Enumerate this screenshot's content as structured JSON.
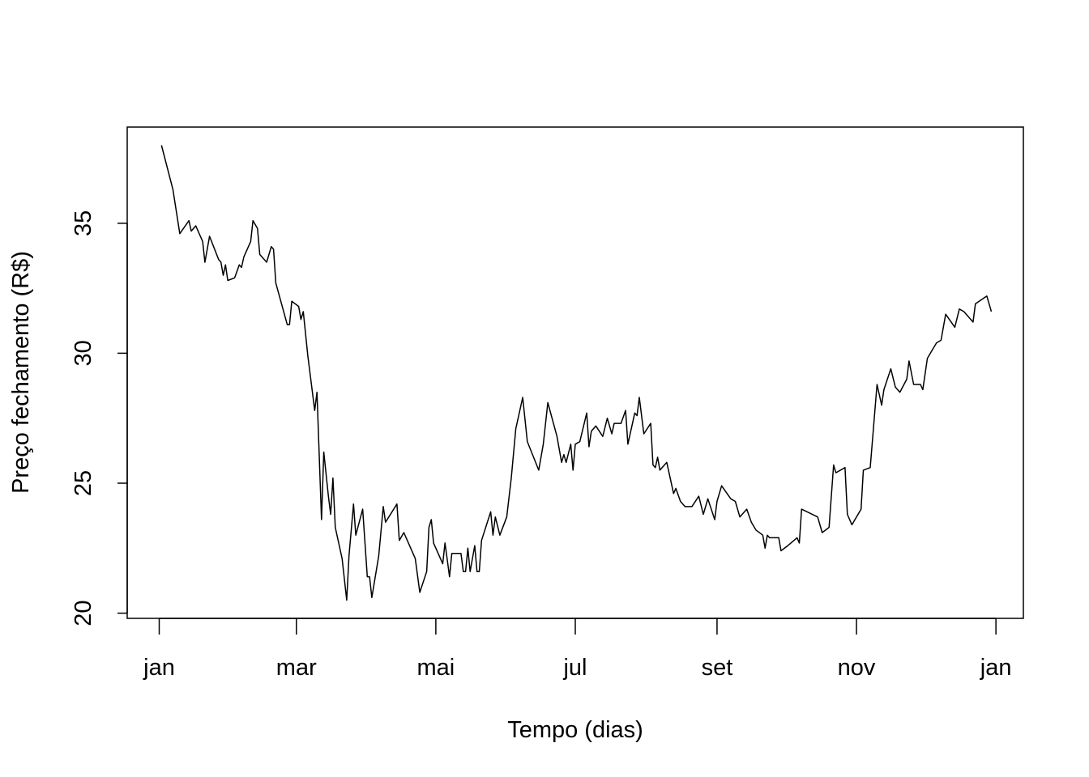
{
  "chart_data": {
    "type": "line",
    "title": "",
    "xlabel": "Tempo (dias)",
    "ylabel": "Preço fechamento (R$)",
    "ylim": [
      19.8,
      38.7
    ],
    "xlim": [
      "2019-12-18",
      "2021-01-13"
    ],
    "grid": false,
    "line_color": "#000000",
    "yticks": [
      20,
      25,
      30,
      35
    ],
    "xticks": [
      {
        "label": "jan",
        "date": "2020-01-01"
      },
      {
        "label": "mar",
        "date": "2020-03-01"
      },
      {
        "label": "mai",
        "date": "2020-05-01"
      },
      {
        "label": "jul",
        "date": "2020-07-01"
      },
      {
        "label": "set",
        "date": "2020-09-01"
      },
      {
        "label": "nov",
        "date": "2020-11-01"
      },
      {
        "label": "jan",
        "date": "2021-01-01"
      }
    ],
    "points": [
      [
        "2020-01-02",
        38.0
      ],
      [
        "2020-01-07",
        36.3
      ],
      [
        "2020-01-10",
        34.6
      ],
      [
        "2020-01-14",
        35.1
      ],
      [
        "2020-01-15",
        34.7
      ],
      [
        "2020-01-17",
        34.9
      ],
      [
        "2020-01-20",
        34.3
      ],
      [
        "2020-01-21",
        33.5
      ],
      [
        "2020-01-23",
        34.5
      ],
      [
        "2020-01-27",
        33.6
      ],
      [
        "2020-01-28",
        33.5
      ],
      [
        "2020-01-29",
        33.0
      ],
      [
        "2020-01-30",
        33.4
      ],
      [
        "2020-01-31",
        32.8
      ],
      [
        "2020-02-03",
        32.9
      ],
      [
        "2020-02-05",
        33.4
      ],
      [
        "2020-02-06",
        33.3
      ],
      [
        "2020-02-07",
        33.7
      ],
      [
        "2020-02-10",
        34.3
      ],
      [
        "2020-02-11",
        35.1
      ],
      [
        "2020-02-13",
        34.8
      ],
      [
        "2020-02-14",
        33.8
      ],
      [
        "2020-02-17",
        33.5
      ],
      [
        "2020-02-19",
        34.1
      ],
      [
        "2020-02-20",
        34.0
      ],
      [
        "2020-02-21",
        32.7
      ],
      [
        "2020-02-26",
        31.1
      ],
      [
        "2020-02-27",
        31.1
      ],
      [
        "2020-02-28",
        32.0
      ],
      [
        "2020-03-02",
        31.8
      ],
      [
        "2020-03-03",
        31.3
      ],
      [
        "2020-03-04",
        31.6
      ],
      [
        "2020-03-06",
        29.9
      ],
      [
        "2020-03-09",
        27.8
      ],
      [
        "2020-03-10",
        28.5
      ],
      [
        "2020-03-12",
        23.6
      ],
      [
        "2020-03-13",
        26.2
      ],
      [
        "2020-03-15",
        24.5
      ],
      [
        "2020-03-16",
        23.8
      ],
      [
        "2020-03-17",
        25.2
      ],
      [
        "2020-03-18",
        23.3
      ],
      [
        "2020-03-21",
        22.1
      ],
      [
        "2020-03-23",
        20.5
      ],
      [
        "2020-03-24",
        22.2
      ],
      [
        "2020-03-26",
        24.2
      ],
      [
        "2020-03-27",
        23.0
      ],
      [
        "2020-03-30",
        24.0
      ],
      [
        "2020-04-01",
        21.4
      ],
      [
        "2020-04-02",
        21.4
      ],
      [
        "2020-04-03",
        20.6
      ],
      [
        "2020-04-06",
        22.2
      ],
      [
        "2020-04-08",
        24.1
      ],
      [
        "2020-04-09",
        23.5
      ],
      [
        "2020-04-14",
        24.2
      ],
      [
        "2020-04-15",
        22.8
      ],
      [
        "2020-04-17",
        23.1
      ],
      [
        "2020-04-22",
        22.1
      ],
      [
        "2020-04-24",
        20.8
      ],
      [
        "2020-04-27",
        21.6
      ],
      [
        "2020-04-28",
        23.3
      ],
      [
        "2020-04-29",
        23.6
      ],
      [
        "2020-04-30",
        22.7
      ],
      [
        "2020-05-04",
        21.9
      ],
      [
        "2020-05-05",
        22.7
      ],
      [
        "2020-05-07",
        21.4
      ],
      [
        "2020-05-08",
        22.3
      ],
      [
        "2020-05-12",
        22.3
      ],
      [
        "2020-05-13",
        21.6
      ],
      [
        "2020-05-14",
        21.6
      ],
      [
        "2020-05-15",
        22.5
      ],
      [
        "2020-05-16",
        21.6
      ],
      [
        "2020-05-18",
        22.6
      ],
      [
        "2020-05-19",
        21.6
      ],
      [
        "2020-05-20",
        21.6
      ],
      [
        "2020-05-21",
        22.8
      ],
      [
        "2020-05-25",
        23.9
      ],
      [
        "2020-05-26",
        23.0
      ],
      [
        "2020-05-27",
        23.7
      ],
      [
        "2020-05-29",
        23.0
      ],
      [
        "2020-06-01",
        23.7
      ],
      [
        "2020-06-03",
        25.2
      ],
      [
        "2020-06-05",
        27.1
      ],
      [
        "2020-06-08",
        28.3
      ],
      [
        "2020-06-10",
        26.6
      ],
      [
        "2020-06-15",
        25.5
      ],
      [
        "2020-06-17",
        26.5
      ],
      [
        "2020-06-19",
        28.1
      ],
      [
        "2020-06-23",
        26.8
      ],
      [
        "2020-06-25",
        25.8
      ],
      [
        "2020-06-26",
        26.1
      ],
      [
        "2020-06-27",
        25.8
      ],
      [
        "2020-06-29",
        26.5
      ],
      [
        "2020-06-30",
        25.5
      ],
      [
        "2020-07-01",
        26.5
      ],
      [
        "2020-07-03",
        26.6
      ],
      [
        "2020-07-06",
        27.7
      ],
      [
        "2020-07-07",
        26.4
      ],
      [
        "2020-07-08",
        27.0
      ],
      [
        "2020-07-10",
        27.2
      ],
      [
        "2020-07-13",
        26.8
      ],
      [
        "2020-07-15",
        27.5
      ],
      [
        "2020-07-17",
        26.9
      ],
      [
        "2020-07-18",
        27.3
      ],
      [
        "2020-07-21",
        27.3
      ],
      [
        "2020-07-23",
        27.8
      ],
      [
        "2020-07-24",
        26.5
      ],
      [
        "2020-07-27",
        27.7
      ],
      [
        "2020-07-28",
        27.6
      ],
      [
        "2020-07-29",
        28.3
      ],
      [
        "2020-07-31",
        26.9
      ],
      [
        "2020-08-03",
        27.3
      ],
      [
        "2020-08-04",
        25.7
      ],
      [
        "2020-08-05",
        25.6
      ],
      [
        "2020-08-06",
        26.0
      ],
      [
        "2020-08-07",
        25.5
      ],
      [
        "2020-08-10",
        25.8
      ],
      [
        "2020-08-13",
        24.6
      ],
      [
        "2020-08-14",
        24.8
      ],
      [
        "2020-08-16",
        24.3
      ],
      [
        "2020-08-18",
        24.1
      ],
      [
        "2020-08-21",
        24.1
      ],
      [
        "2020-08-24",
        24.5
      ],
      [
        "2020-08-26",
        23.8
      ],
      [
        "2020-08-28",
        24.4
      ],
      [
        "2020-08-31",
        23.6
      ],
      [
        "2020-09-01",
        24.3
      ],
      [
        "2020-09-03",
        24.9
      ],
      [
        "2020-09-07",
        24.4
      ],
      [
        "2020-09-09",
        24.3
      ],
      [
        "2020-09-11",
        23.7
      ],
      [
        "2020-09-14",
        24.0
      ],
      [
        "2020-09-16",
        23.5
      ],
      [
        "2020-09-18",
        23.2
      ],
      [
        "2020-09-21",
        23.0
      ],
      [
        "2020-09-22",
        22.5
      ],
      [
        "2020-09-23",
        23.0
      ],
      [
        "2020-09-24",
        22.9
      ],
      [
        "2020-09-28",
        22.9
      ],
      [
        "2020-09-29",
        22.4
      ],
      [
        "2020-10-02",
        22.6
      ],
      [
        "2020-10-06",
        22.9
      ],
      [
        "2020-10-07",
        22.7
      ],
      [
        "2020-10-08",
        24.0
      ],
      [
        "2020-10-15",
        23.7
      ],
      [
        "2020-10-17",
        23.1
      ],
      [
        "2020-10-20",
        23.3
      ],
      [
        "2020-10-22",
        25.7
      ],
      [
        "2020-10-23",
        25.4
      ],
      [
        "2020-10-27",
        25.6
      ],
      [
        "2020-10-28",
        23.8
      ],
      [
        "2020-10-30",
        23.4
      ],
      [
        "2020-11-03",
        24.0
      ],
      [
        "2020-11-04",
        25.5
      ],
      [
        "2020-11-07",
        25.6
      ],
      [
        "2020-11-10",
        28.8
      ],
      [
        "2020-11-12",
        28.0
      ],
      [
        "2020-11-13",
        28.6
      ],
      [
        "2020-11-16",
        29.4
      ],
      [
        "2020-11-18",
        28.7
      ],
      [
        "2020-11-20",
        28.5
      ],
      [
        "2020-11-23",
        29.0
      ],
      [
        "2020-11-24",
        29.7
      ],
      [
        "2020-11-26",
        28.8
      ],
      [
        "2020-11-29",
        28.8
      ],
      [
        "2020-11-30",
        28.6
      ],
      [
        "2020-12-02",
        29.8
      ],
      [
        "2020-12-04",
        30.1
      ],
      [
        "2020-12-06",
        30.4
      ],
      [
        "2020-12-08",
        30.5
      ],
      [
        "2020-12-10",
        31.5
      ],
      [
        "2020-12-14",
        31.0
      ],
      [
        "2020-12-16",
        31.7
      ],
      [
        "2020-12-18",
        31.6
      ],
      [
        "2020-12-22",
        31.2
      ],
      [
        "2020-12-23",
        31.9
      ],
      [
        "2020-12-28",
        32.2
      ],
      [
        "2020-12-30",
        31.6
      ]
    ]
  }
}
